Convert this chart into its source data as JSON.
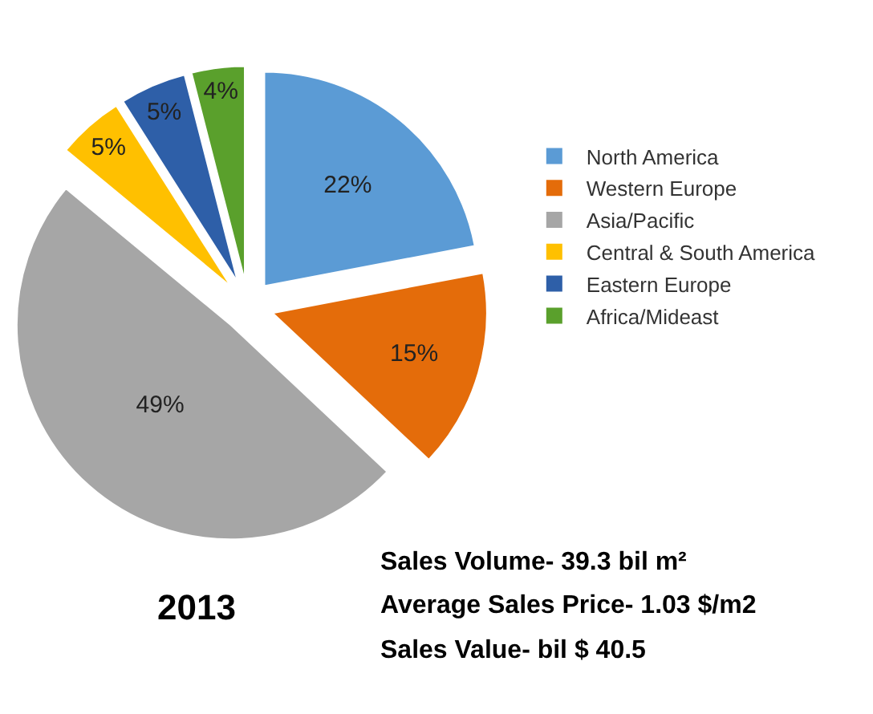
{
  "chart_data": {
    "type": "pie",
    "categories": [
      "North America",
      "Western Europe",
      "Asia/Pacific",
      "Central & South America",
      "Eastern Europe",
      "Africa/Mideast"
    ],
    "values": [
      22,
      15,
      49,
      5,
      5,
      4
    ],
    "value_labels": [
      "22%",
      "15%",
      "49%",
      "5%",
      "5%",
      "4%"
    ],
    "colors": [
      "#5b9bd5",
      "#e46c0a",
      "#a6a6a6",
      "#ffc000",
      "#2e5fa8",
      "#5aa02c"
    ],
    "legend": "right",
    "annotations": [
      "2013",
      "Sales Volume- 39.3 bil m²",
      "Average Sales Price- 1.03 $/m2",
      "Sales Value- bil $ 40.5"
    ]
  }
}
